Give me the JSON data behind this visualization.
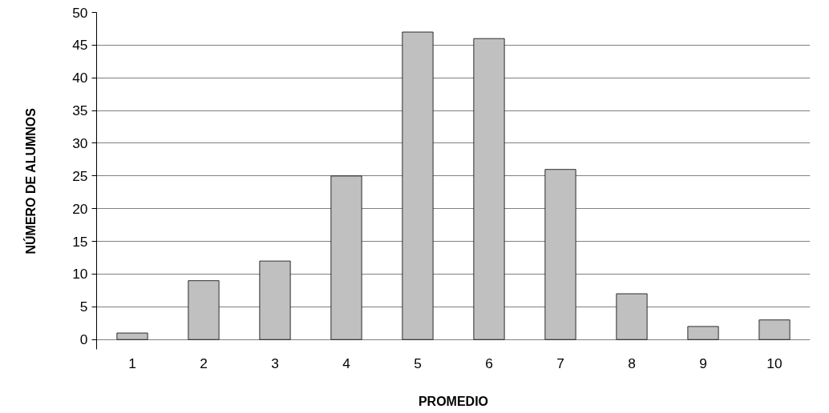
{
  "chart_data": {
    "type": "bar",
    "xlabel": "PROMEDIO",
    "ylabel": "NÚMERO DE ALUMNOS",
    "categories": [
      "1",
      "2",
      "3",
      "4",
      "5",
      "6",
      "7",
      "8",
      "9",
      "10"
    ],
    "values": [
      1,
      9,
      12,
      25,
      47,
      46,
      26,
      7,
      2,
      3
    ],
    "color": "#c0c0c0",
    "ylim": [
      -1.5,
      50
    ],
    "yticks": [
      0,
      5,
      10,
      15,
      20,
      25,
      30,
      35,
      40,
      45,
      50
    ],
    "grid": "y"
  }
}
